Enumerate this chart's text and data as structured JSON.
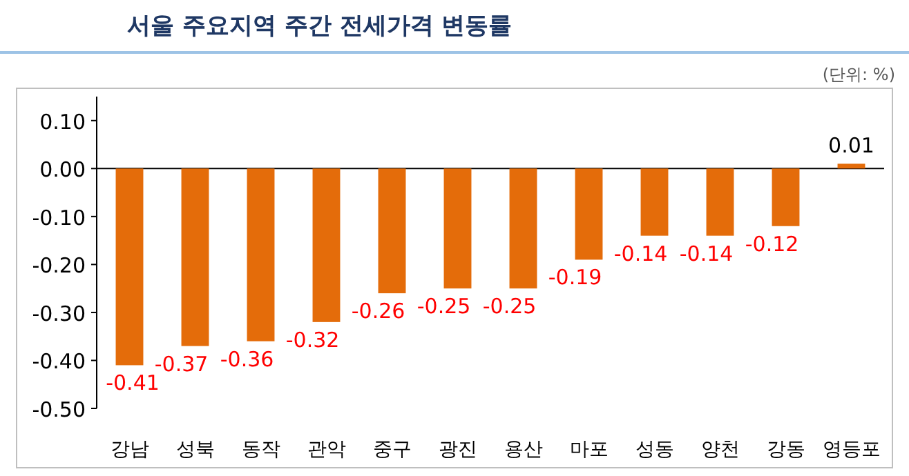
{
  "chart_data": {
    "type": "bar",
    "title": "서울 주요지역 주간 전세가격 변동률",
    "annotations": [
      "(단위: %)"
    ],
    "categories": [
      "강남",
      "성북",
      "동작",
      "관악",
      "중구",
      "광진",
      "용산",
      "마포",
      "성동",
      "양천",
      "강동",
      "영등포"
    ],
    "values": [
      -0.41,
      -0.37,
      -0.36,
      -0.32,
      -0.26,
      -0.25,
      -0.25,
      -0.19,
      -0.14,
      -0.14,
      -0.12,
      0.01
    ],
    "color": "#e46c0a",
    "ylim": [
      -0.5,
      0.15
    ],
    "yticks": [
      {
        "value": -0.5,
        "label": "-0.50"
      },
      {
        "value": -0.4,
        "label": "-0.40"
      },
      {
        "value": -0.3,
        "label": "-0.30"
      },
      {
        "value": -0.2,
        "label": "-0.20"
      },
      {
        "value": -0.1,
        "label": "-0.10"
      },
      {
        "value": 0,
        "label": "0.00"
      },
      {
        "value": 0.1,
        "label": "0.10"
      }
    ],
    "data_labels": true
  }
}
